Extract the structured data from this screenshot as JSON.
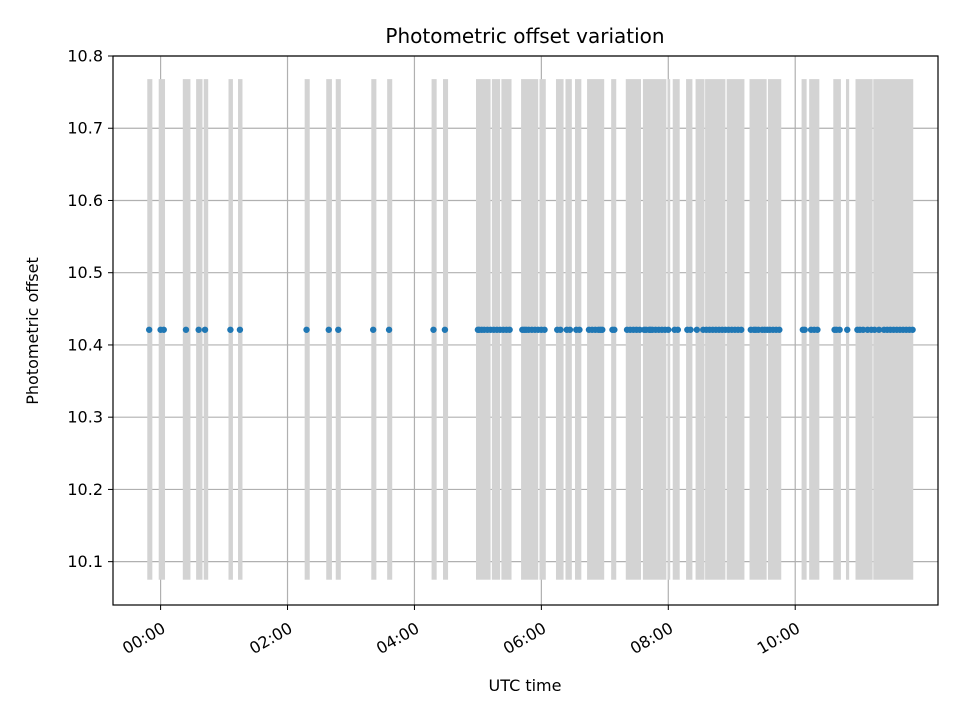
{
  "chart_data": {
    "type": "scatter",
    "title": "Photometric offset variation",
    "xlabel": "UTC time",
    "ylabel": "Photometric offset",
    "x_unit": "hours since 00:00 UTC",
    "xlim": [
      -0.75,
      12.25
    ],
    "ylim": [
      10.04,
      10.8
    ],
    "x_ticks": [
      {
        "value": 0,
        "label": "00:00"
      },
      {
        "value": 2,
        "label": "02:00"
      },
      {
        "value": 4,
        "label": "04:00"
      },
      {
        "value": 6,
        "label": "06:00"
      },
      {
        "value": 8,
        "label": "08:00"
      },
      {
        "value": 10,
        "label": "10:00"
      }
    ],
    "y_ticks": [
      {
        "value": 10.1,
        "label": "10.1"
      },
      {
        "value": 10.2,
        "label": "10.2"
      },
      {
        "value": 10.3,
        "label": "10.3"
      },
      {
        "value": 10.4,
        "label": "10.4"
      },
      {
        "value": 10.5,
        "label": "10.5"
      },
      {
        "value": 10.6,
        "label": "10.6"
      },
      {
        "value": 10.7,
        "label": "10.7"
      },
      {
        "value": 10.8,
        "label": "10.8"
      }
    ],
    "grid": true,
    "band_range": [
      10.075,
      10.768
    ],
    "band_color": "#d3d3d3",
    "point_color": "#1f77b4",
    "series": [
      {
        "name": "photometric offset",
        "y_value": 10.421,
        "x": [
          -0.18,
          0.0,
          0.05,
          0.4,
          0.6,
          0.7,
          1.1,
          1.25,
          2.3,
          2.65,
          2.8,
          3.35,
          3.6,
          4.3,
          4.48,
          5.0,
          5.02,
          5.06,
          5.1,
          5.15,
          5.2,
          5.25,
          5.3,
          5.35,
          5.4,
          5.45,
          5.5,
          5.7,
          5.73,
          5.76,
          5.8,
          5.85,
          5.9,
          5.95,
          6.0,
          6.05,
          6.25,
          6.3,
          6.4,
          6.45,
          6.55,
          6.6,
          6.75,
          6.8,
          6.85,
          6.9,
          6.93,
          6.96,
          7.12,
          7.15,
          7.35,
          7.4,
          7.45,
          7.5,
          7.55,
          7.62,
          7.65,
          7.7,
          7.72,
          7.75,
          7.8,
          7.85,
          7.9,
          7.95,
          8.0,
          8.1,
          8.15,
          8.3,
          8.35,
          8.45,
          8.55,
          8.6,
          8.65,
          8.7,
          8.75,
          8.8,
          8.85,
          8.9,
          8.95,
          9.0,
          9.05,
          9.1,
          9.15,
          9.3,
          9.35,
          9.38,
          9.42,
          9.48,
          9.52,
          9.56,
          9.6,
          9.65,
          9.7,
          9.75,
          10.12,
          10.15,
          10.25,
          10.3,
          10.35,
          10.62,
          10.65,
          10.7,
          10.82,
          10.98,
          11.02,
          11.07,
          11.14,
          11.2,
          11.25,
          11.32,
          11.4,
          11.45,
          11.5,
          11.55,
          11.6,
          11.65,
          11.7,
          11.75,
          11.8,
          11.85
        ]
      }
    ],
    "bands": [
      {
        "x0": -0.21,
        "x1": -0.13
      },
      {
        "x0": -0.03,
        "x1": 0.07
      },
      {
        "x0": 0.35,
        "x1": 0.47
      },
      {
        "x0": 0.56,
        "x1": 0.66
      },
      {
        "x0": 0.68,
        "x1": 0.75
      },
      {
        "x0": 1.07,
        "x1": 1.14
      },
      {
        "x0": 1.22,
        "x1": 1.29
      },
      {
        "x0": 2.27,
        "x1": 2.35
      },
      {
        "x0": 2.61,
        "x1": 2.7
      },
      {
        "x0": 2.76,
        "x1": 2.84
      },
      {
        "x0": 3.32,
        "x1": 3.4
      },
      {
        "x0": 3.57,
        "x1": 3.65
      },
      {
        "x0": 4.27,
        "x1": 4.35
      },
      {
        "x0": 4.45,
        "x1": 4.53
      },
      {
        "x0": 4.97,
        "x1": 5.2
      },
      {
        "x0": 5.22,
        "x1": 5.35
      },
      {
        "x0": 5.37,
        "x1": 5.53
      },
      {
        "x0": 5.68,
        "x1": 5.95
      },
      {
        "x0": 5.97,
        "x1": 6.07
      },
      {
        "x0": 6.23,
        "x1": 6.35
      },
      {
        "x0": 6.38,
        "x1": 6.48
      },
      {
        "x0": 6.53,
        "x1": 6.63
      },
      {
        "x0": 6.72,
        "x1": 6.99
      },
      {
        "x0": 7.1,
        "x1": 7.18
      },
      {
        "x0": 7.33,
        "x1": 7.57
      },
      {
        "x0": 7.6,
        "x1": 7.97
      },
      {
        "x0": 7.99,
        "x1": 8.03
      },
      {
        "x0": 8.07,
        "x1": 8.18
      },
      {
        "x0": 8.28,
        "x1": 8.38
      },
      {
        "x0": 8.43,
        "x1": 8.57
      },
      {
        "x0": 8.58,
        "x1": 8.9
      },
      {
        "x0": 8.92,
        "x1": 9.2
      },
      {
        "x0": 9.28,
        "x1": 9.55
      },
      {
        "x0": 9.57,
        "x1": 9.78
      },
      {
        "x0": 10.1,
        "x1": 10.18
      },
      {
        "x0": 10.22,
        "x1": 10.38
      },
      {
        "x0": 10.6,
        "x1": 10.72
      },
      {
        "x0": 10.8,
        "x1": 10.85
      },
      {
        "x0": 10.95,
        "x1": 11.22
      },
      {
        "x0": 11.23,
        "x1": 11.86
      }
    ]
  }
}
